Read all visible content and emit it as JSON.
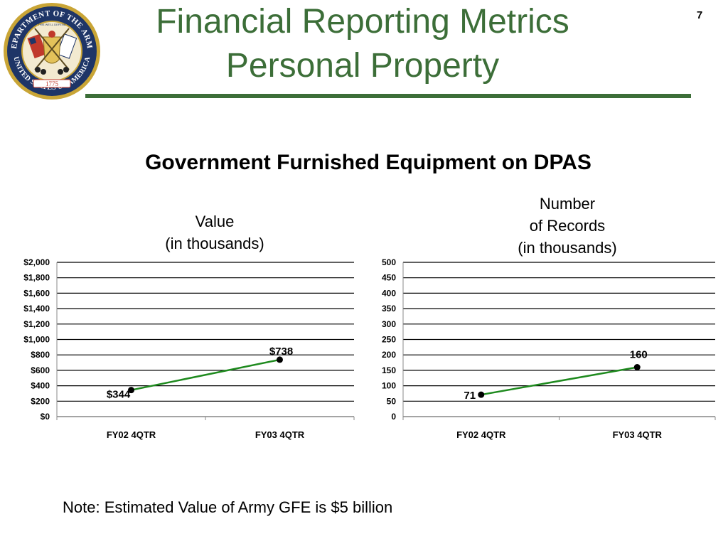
{
  "slide": {
    "number": "7",
    "title_line1": "Financial Reporting Metrics",
    "title_line2": "Personal Property",
    "heading": "Government Furnished Equipment on DPAS",
    "note": "Note:  Estimated Value of Army GFE is $5 billion",
    "colors": {
      "title": "#3c6e38",
      "series_line": "#1e8a1e",
      "marker": "#000000"
    }
  },
  "seal": {
    "top_text": "DEPARTMENT OF THE ARMY",
    "bottom_text": "UNITED STATES OF AMERICA",
    "year": "1775",
    "banner_text": "THIS WE'LL DEFEND"
  },
  "chart_data": [
    {
      "type": "line",
      "title_lines": [
        "Value",
        "(in thousands)"
      ],
      "categories": [
        "FY02 4QTR",
        "FY03 4QTR"
      ],
      "values": [
        344,
        738
      ],
      "data_labels": [
        "$344",
        "$738"
      ],
      "ylim": [
        0,
        2000
      ],
      "yticks": [
        0,
        200,
        400,
        600,
        800,
        1000,
        1200,
        1400,
        1600,
        1800,
        2000
      ],
      "ytick_labels": [
        "$0",
        "$200",
        "$400",
        "$600",
        "$800",
        "$1,000",
        "$1,200",
        "$1,400",
        "$1,600",
        "$1,800",
        "$2,000"
      ],
      "grid": true,
      "legend": "none"
    },
    {
      "type": "line",
      "title_lines": [
        "Number",
        "of Records",
        "(in thousands)"
      ],
      "categories": [
        "FY02 4QTR",
        "FY03 4QTR"
      ],
      "values": [
        71,
        160
      ],
      "data_labels": [
        "71",
        "160"
      ],
      "ylim": [
        0,
        500
      ],
      "yticks": [
        0,
        50,
        100,
        150,
        200,
        250,
        300,
        350,
        400,
        450,
        500
      ],
      "ytick_labels": [
        "0",
        "50",
        "100",
        "150",
        "200",
        "250",
        "300",
        "350",
        "400",
        "450",
        "500"
      ],
      "grid": true,
      "legend": "none"
    }
  ]
}
